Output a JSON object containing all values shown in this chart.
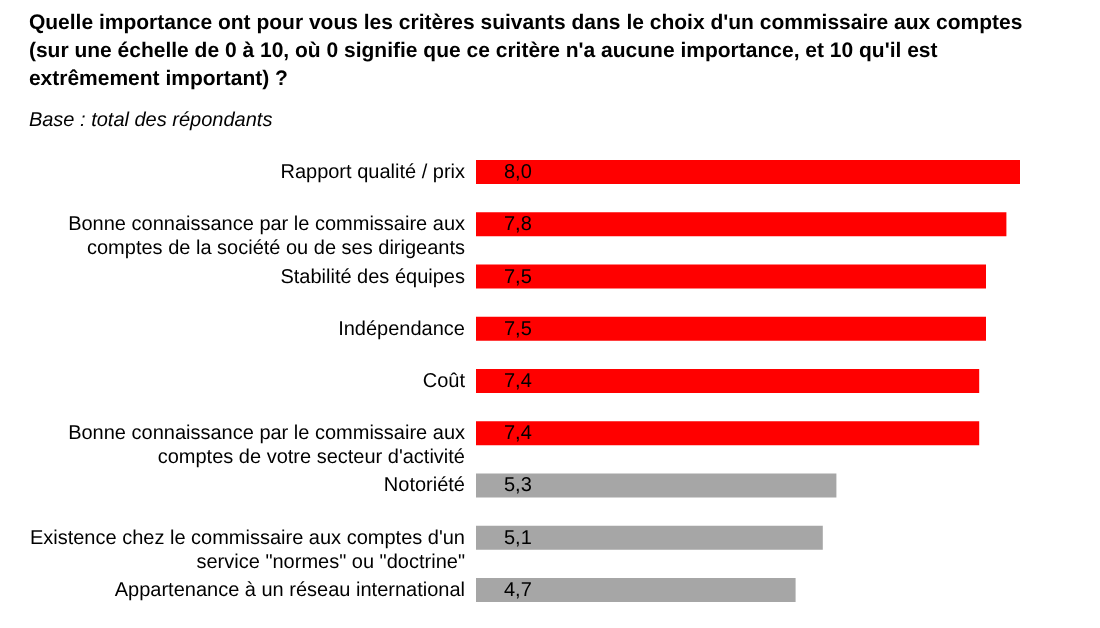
{
  "chart_data": {
    "type": "bar",
    "orientation": "horizontal",
    "title": "Quelle importance ont pour vous les critères suivants dans le choix d'un commissaire aux comptes (sur une échelle de 0 à 10, où 0 signifie que ce critère n'a aucune importance, et 10 qu'il est extrêmement important) ?",
    "subtitle": "Base : total des répondants",
    "categories": [
      "Rapport qualité / prix",
      "Bonne connaissance par le commissaire aux comptes de la société ou de ses dirigeants",
      "Stabilité des équipes",
      "Indépendance",
      "Coût",
      "Bonne connaissance par le commissaire aux comptes de votre secteur d'activité",
      "Notoriété",
      "Existence chez le commissaire aux comptes d'un service \"normes\" ou \"doctrine\"",
      "Appartenance à un réseau international"
    ],
    "values": [
      8.0,
      7.8,
      7.5,
      7.5,
      7.4,
      7.4,
      5.3,
      5.1,
      4.7
    ],
    "value_labels": [
      "8,0",
      "7,8",
      "7,5",
      "7,5",
      "7,4",
      "7,4",
      "5,3",
      "5,1",
      "4,7"
    ],
    "colors": [
      "#ff0000",
      "#ff0000",
      "#ff0000",
      "#ff0000",
      "#ff0000",
      "#ff0000",
      "#a6a6a6",
      "#a6a6a6",
      "#a6a6a6"
    ]
  }
}
